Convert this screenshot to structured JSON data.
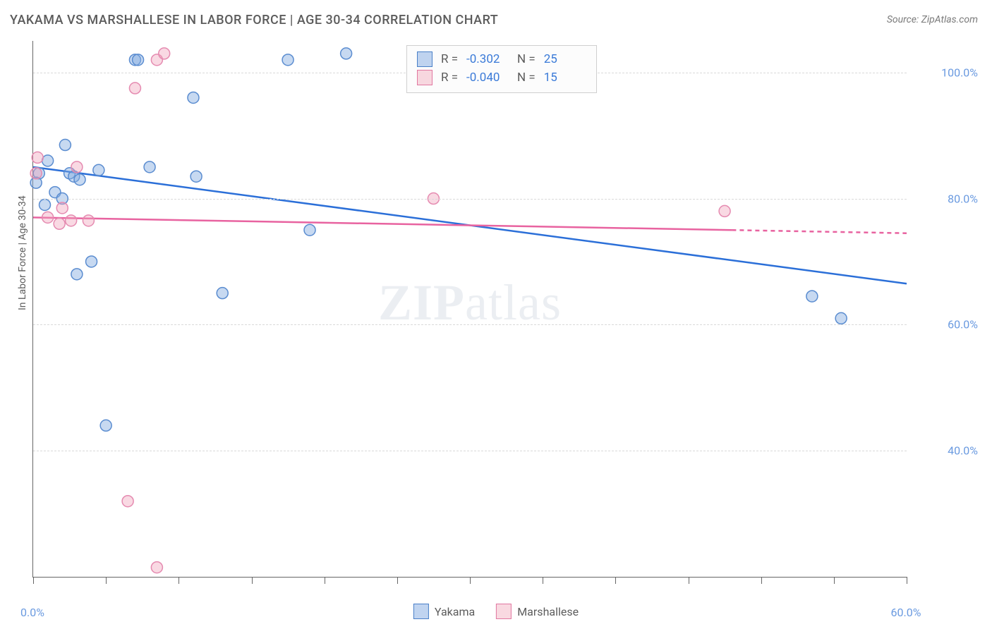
{
  "title": "YAKAMA VS MARSHALLESE IN LABOR FORCE | AGE 30-34 CORRELATION CHART",
  "source": "Source: ZipAtlas.com",
  "ylabel": "In Labor Force | Age 30-34",
  "watermark_a": "ZIP",
  "watermark_b": "atlas",
  "chart": {
    "type": "scatter",
    "xlim": [
      0,
      60
    ],
    "ylim": [
      20,
      105
    ],
    "xtick_positions": [
      0,
      5,
      10,
      15,
      20,
      25,
      30,
      35,
      40,
      45,
      50,
      55,
      60
    ],
    "xtick_labels": {
      "0": "0.0%",
      "60": "60.0%"
    },
    "ytick_positions": [
      40,
      60,
      80,
      100
    ],
    "ytick_labels": [
      "40.0%",
      "60.0%",
      "80.0%",
      "100.0%"
    ],
    "grid_color": "#d9d9d9",
    "axis_color": "#666666",
    "background_color": "#ffffff",
    "marker_radius": 8,
    "marker_stroke_width": 1.5,
    "series": [
      {
        "name": "Yakama",
        "fill": "rgba(130,170,225,0.45)",
        "stroke": "#5a8cd0",
        "trend_color": "#2b6fd8",
        "trend_width": 2.5,
        "trend": {
          "x1": 0,
          "y1": 85,
          "x2": 60,
          "y2": 66.5
        },
        "points": [
          [
            0.4,
            84
          ],
          [
            1.0,
            86
          ],
          [
            1.5,
            81
          ],
          [
            2.2,
            88.5
          ],
          [
            2.5,
            84
          ],
          [
            2.8,
            83.5
          ],
          [
            2.0,
            80
          ],
          [
            3.2,
            83
          ],
          [
            4.0,
            70
          ],
          [
            3.0,
            68
          ],
          [
            5.0,
            44
          ],
          [
            7.0,
            102
          ],
          [
            7.2,
            102
          ],
          [
            8.0,
            85
          ],
          [
            11.0,
            96
          ],
          [
            11.2,
            83.5
          ],
          [
            13.0,
            65
          ],
          [
            17.5,
            102
          ],
          [
            21.5,
            103
          ],
          [
            19.0,
            75
          ],
          [
            53.5,
            64.5
          ],
          [
            55.5,
            61
          ],
          [
            0.8,
            79
          ],
          [
            4.5,
            84.5
          ],
          [
            0.2,
            82.5
          ]
        ],
        "R": "-0.302",
        "N": "25"
      },
      {
        "name": "Marshallese",
        "fill": "rgba(240,160,185,0.4)",
        "stroke": "#e58ab0",
        "trend_color": "#e863a0",
        "trend_width": 2.5,
        "trend_solid_end": 48,
        "trend": {
          "x1": 0,
          "y1": 77,
          "x2": 60,
          "y2": 74.5
        },
        "points": [
          [
            0.3,
            86.5
          ],
          [
            0.2,
            84
          ],
          [
            1.8,
            76
          ],
          [
            2.6,
            76.5
          ],
          [
            3.0,
            85
          ],
          [
            3.8,
            76.5
          ],
          [
            6.5,
            32
          ],
          [
            8.5,
            21.5
          ],
          [
            7.0,
            97.5
          ],
          [
            8.5,
            102
          ],
          [
            9.0,
            103
          ],
          [
            27.5,
            80
          ],
          [
            47.5,
            78
          ],
          [
            1.0,
            77
          ],
          [
            2.0,
            78.5
          ]
        ],
        "R": "-0.040",
        "N": "15"
      }
    ]
  },
  "legend_bottom": [
    {
      "swatch": "blue",
      "label": "Yakama"
    },
    {
      "swatch": "pink",
      "label": "Marshallese"
    }
  ]
}
